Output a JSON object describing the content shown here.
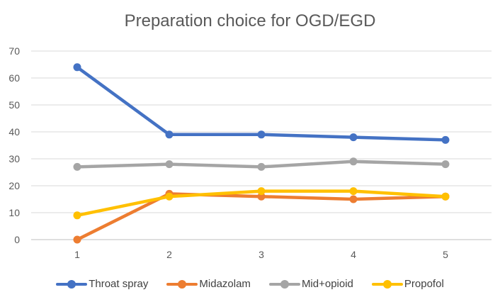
{
  "chart_data": {
    "type": "line",
    "title": "Preparation choice for OGD/EGD",
    "xlabel": "",
    "ylabel": "",
    "categories": [
      "1",
      "2",
      "3",
      "4",
      "5"
    ],
    "ylim": [
      0,
      70
    ],
    "yticks": [
      0,
      10,
      20,
      30,
      40,
      50,
      60,
      70
    ],
    "grid": true,
    "legend_position": "bottom",
    "series": [
      {
        "name": "Throat spray",
        "color": "#4472C4",
        "values": [
          64,
          39,
          39,
          38,
          37
        ]
      },
      {
        "name": "Midazolam",
        "color": "#ED7D31",
        "values": [
          0,
          17,
          16,
          15,
          16
        ]
      },
      {
        "name": "Mid+opioid",
        "color": "#A5A5A5",
        "values": [
          27,
          28,
          27,
          29,
          28
        ]
      },
      {
        "name": "Propofol",
        "color": "#FFC000",
        "values": [
          9,
          16,
          18,
          18,
          16
        ]
      }
    ]
  }
}
